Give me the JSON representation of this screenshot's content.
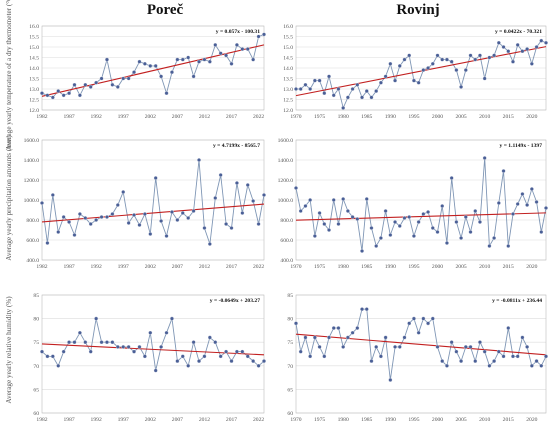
{
  "columns": [
    "Poreč",
    "Rovinj"
  ],
  "row_labels": [
    "Average yearly temperature of a dry thermometer (°C)",
    "Average yearly precipitation amounts (mm)",
    "Average yearly relative humidity (%)"
  ],
  "colors": {
    "series": "#7f96b5",
    "marker": "#4a5f96",
    "trend": "#c22020",
    "grid": "#dcdcdc"
  },
  "chart_data": [
    {
      "type": "line",
      "station": "Poreč",
      "variable": "temperature",
      "title": "",
      "ylabel": "Average yearly temperature of a dry thermometer (°C)",
      "equation": "y = 0.057x - 100.31",
      "xlim": [
        1982,
        2023
      ],
      "xticks": [
        1982,
        1987,
        1992,
        1997,
        2002,
        2007,
        2012,
        2017,
        2022
      ],
      "ylim": [
        12.0,
        16.0
      ],
      "yticks": [
        "12.0",
        "12.5",
        "13.0",
        "13.5",
        "14.0",
        "14.5",
        "15.0",
        "15.5",
        "16.0"
      ],
      "x": [
        1982,
        1983,
        1984,
        1985,
        1986,
        1987,
        1988,
        1989,
        1990,
        1991,
        1992,
        1993,
        1994,
        1995,
        1996,
        1997,
        1998,
        1999,
        2000,
        2001,
        2002,
        2003,
        2004,
        2005,
        2006,
        2007,
        2008,
        2009,
        2010,
        2011,
        2012,
        2013,
        2014,
        2015,
        2016,
        2017,
        2018,
        2019,
        2020,
        2021,
        2022,
        2023
      ],
      "values": [
        12.8,
        12.7,
        12.6,
        12.9,
        12.7,
        12.8,
        13.2,
        12.7,
        13.2,
        13.1,
        13.3,
        13.5,
        14.4,
        13.2,
        13.1,
        13.5,
        13.5,
        13.8,
        14.3,
        14.2,
        14.1,
        14.1,
        13.6,
        12.8,
        13.8,
        14.4,
        14.4,
        14.5,
        13.6,
        14.3,
        14.4,
        14.3,
        15.1,
        14.7,
        14.6,
        14.2,
        15.1,
        14.9,
        14.9,
        14.4,
        15.5,
        15.6
      ],
      "trend": [
        1982,
        2023
      ]
    },
    {
      "type": "line",
      "station": "Rovinj",
      "variable": "temperature",
      "title": "",
      "ylabel": "",
      "equation": "y = 0.0422x - 70.321",
      "xlim": [
        1970,
        2023
      ],
      "xticks": [
        1970,
        1975,
        1980,
        1985,
        1990,
        1995,
        2000,
        2005,
        2010,
        2015,
        2020
      ],
      "ylim": [
        12.0,
        16.0
      ],
      "yticks": [
        "12.0",
        "12.5",
        "13.0",
        "13.5",
        "14.0",
        "14.5",
        "15.0",
        "15.5",
        "16.0"
      ],
      "x": [
        1970,
        1971,
        1972,
        1973,
        1974,
        1975,
        1976,
        1977,
        1978,
        1979,
        1980,
        1981,
        1982,
        1983,
        1984,
        1985,
        1986,
        1987,
        1988,
        1989,
        1990,
        1991,
        1992,
        1993,
        1994,
        1995,
        1996,
        1997,
        1998,
        1999,
        2000,
        2001,
        2002,
        2003,
        2004,
        2005,
        2006,
        2007,
        2008,
        2009,
        2010,
        2011,
        2012,
        2013,
        2014,
        2015,
        2016,
        2017,
        2018,
        2019,
        2020,
        2021,
        2022,
        2023
      ],
      "values": [
        13.0,
        13.0,
        13.2,
        13.0,
        13.4,
        13.4,
        12.8,
        13.6,
        12.7,
        13.0,
        12.1,
        12.6,
        13.0,
        13.2,
        12.6,
        12.9,
        12.6,
        12.9,
        13.3,
        13.6,
        14.2,
        13.4,
        14.1,
        14.4,
        14.6,
        13.4,
        13.3,
        13.9,
        14.0,
        14.2,
        14.6,
        14.4,
        14.4,
        14.3,
        13.9,
        13.1,
        13.9,
        14.6,
        14.4,
        14.6,
        13.5,
        14.5,
        14.6,
        15.2,
        15.0,
        14.8,
        14.3,
        15.1,
        14.8,
        14.9,
        14.2,
        15.0,
        15.3,
        15.2
      ],
      "trend": [
        1970,
        2023
      ]
    },
    {
      "type": "line",
      "station": "Poreč",
      "variable": "precipitation",
      "title": "",
      "ylabel": "Average yearly precipitation amounts (mm)",
      "equation": "y = 4.7199x - 8565.7",
      "xlim": [
        1982,
        2023
      ],
      "xticks": [
        1982,
        1987,
        1992,
        1997,
        2002,
        2007,
        2012,
        2017,
        2022
      ],
      "ylim": [
        400,
        1600
      ],
      "yticks": [
        "400.0",
        "600.0",
        "800.0",
        "1000.0",
        "1200.0",
        "1400.0",
        "1600.0"
      ],
      "x": [
        1982,
        1983,
        1984,
        1985,
        1986,
        1987,
        1988,
        1989,
        1990,
        1991,
        1992,
        1993,
        1994,
        1995,
        1996,
        1997,
        1998,
        1999,
        2000,
        2001,
        2002,
        2003,
        2004,
        2005,
        2006,
        2007,
        2008,
        2009,
        2010,
        2011,
        2012,
        2013,
        2014,
        2015,
        2016,
        2017,
        2018,
        2019,
        2020,
        2021,
        2022,
        2023
      ],
      "values": [
        970,
        570,
        1050,
        680,
        830,
        780,
        650,
        860,
        820,
        760,
        800,
        830,
        830,
        860,
        950,
        1080,
        770,
        850,
        750,
        860,
        660,
        1220,
        790,
        640,
        880,
        800,
        870,
        820,
        890,
        1400,
        720,
        560,
        1020,
        1250,
        760,
        720,
        1170,
        870,
        1150,
        990,
        760,
        1050
      ],
      "trend": [
        1982,
        2023
      ]
    },
    {
      "type": "line",
      "station": "Rovinj",
      "variable": "precipitation",
      "title": "",
      "ylabel": "",
      "equation": "y = 1.1149x - 1397",
      "xlim": [
        1970,
        2023
      ],
      "xticks": [
        1970,
        1975,
        1980,
        1985,
        1990,
        1995,
        2000,
        2005,
        2010,
        2015,
        2020
      ],
      "ylim": [
        400,
        1600
      ],
      "yticks": [
        "400.0",
        "600.0",
        "800.0",
        "1000.0",
        "1200.0",
        "1400.0",
        "1600.0"
      ],
      "x": [
        1970,
        1971,
        1972,
        1973,
        1974,
        1975,
        1976,
        1977,
        1978,
        1979,
        1980,
        1981,
        1982,
        1983,
        1984,
        1985,
        1986,
        1987,
        1988,
        1989,
        1990,
        1991,
        1992,
        1993,
        1994,
        1995,
        1996,
        1997,
        1998,
        1999,
        2000,
        2001,
        2002,
        2003,
        2004,
        2005,
        2006,
        2007,
        2008,
        2009,
        2010,
        2011,
        2012,
        2013,
        2014,
        2015,
        2016,
        2017,
        2018,
        2019,
        2020,
        2021,
        2022,
        2023
      ],
      "values": [
        1120,
        890,
        940,
        1000,
        640,
        870,
        760,
        700,
        1000,
        760,
        1010,
        890,
        830,
        810,
        490,
        1010,
        720,
        540,
        620,
        890,
        650,
        780,
        740,
        820,
        830,
        640,
        780,
        860,
        880,
        720,
        680,
        940,
        570,
        1220,
        780,
        620,
        830,
        680,
        890,
        780,
        1420,
        540,
        620,
        970,
        1290,
        540,
        860,
        960,
        1060,
        950,
        1110,
        980,
        680,
        920
      ],
      "trend": [
        1970,
        2023
      ]
    },
    {
      "type": "line",
      "station": "Poreč",
      "variable": "humidity",
      "title": "",
      "ylabel": "Average yearly relative humidity (%)",
      "equation": "y = -0.0649x + 203.27",
      "xlim": [
        1982,
        2023
      ],
      "xticks": [
        1982,
        1987,
        1992,
        1997,
        2002,
        2007,
        2012,
        2017,
        2022
      ],
      "ylim": [
        60,
        85
      ],
      "yticks": [
        "60",
        "65",
        "70",
        "75",
        "80",
        "85"
      ],
      "x": [
        1982,
        1983,
        1984,
        1985,
        1986,
        1987,
        1988,
        1989,
        1990,
        1991,
        1992,
        1993,
        1994,
        1995,
        1996,
        1997,
        1998,
        1999,
        2000,
        2001,
        2002,
        2003,
        2004,
        2005,
        2006,
        2007,
        2008,
        2009,
        2010,
        2011,
        2012,
        2013,
        2014,
        2015,
        2016,
        2017,
        2018,
        2019,
        2020,
        2021,
        2022,
        2023
      ],
      "values": [
        73,
        72,
        72,
        70,
        73,
        75,
        75,
        77,
        75,
        73,
        80,
        75,
        75,
        75,
        74,
        74,
        74,
        73,
        74,
        72,
        77,
        69,
        74,
        77,
        80,
        71,
        72,
        70,
        75,
        71,
        72,
        76,
        75,
        72,
        73,
        71,
        73,
        73,
        72,
        71,
        70,
        71
      ],
      "trend": [
        1982,
        2023
      ]
    },
    {
      "type": "line",
      "station": "Rovinj",
      "variable": "humidity",
      "title": "",
      "ylabel": "",
      "equation": "y = -0.0811x + 236.44",
      "xlim": [
        1970,
        2023
      ],
      "xticks": [
        1970,
        1975,
        1980,
        1985,
        1990,
        1995,
        2000,
        2005,
        2010,
        2015,
        2020
      ],
      "ylim": [
        60,
        85
      ],
      "yticks": [
        "60",
        "65",
        "70",
        "75",
        "80",
        "85"
      ],
      "x": [
        1970,
        1971,
        1972,
        1973,
        1974,
        1975,
        1976,
        1977,
        1978,
        1979,
        1980,
        1981,
        1982,
        1983,
        1984,
        1985,
        1986,
        1987,
        1988,
        1989,
        1990,
        1991,
        1992,
        1993,
        1994,
        1995,
        1996,
        1997,
        1998,
        1999,
        2000,
        2001,
        2002,
        2003,
        2004,
        2005,
        2006,
        2007,
        2008,
        2009,
        2010,
        2011,
        2012,
        2013,
        2014,
        2015,
        2016,
        2017,
        2018,
        2019,
        2020,
        2021,
        2022,
        2023
      ],
      "values": [
        79,
        73,
        76,
        72,
        76,
        74,
        72,
        76,
        78,
        78,
        74,
        76,
        77,
        78,
        82,
        82,
        71,
        74,
        72,
        76,
        67,
        74,
        74,
        76,
        79,
        80,
        77,
        80,
        79,
        80,
        74,
        71,
        70,
        75,
        73,
        71,
        74,
        74,
        71,
        75,
        73,
        70,
        71,
        73,
        72,
        78,
        72,
        72,
        76,
        74,
        70,
        71,
        70,
        72
      ],
      "trend": [
        1970,
        2023
      ]
    }
  ]
}
